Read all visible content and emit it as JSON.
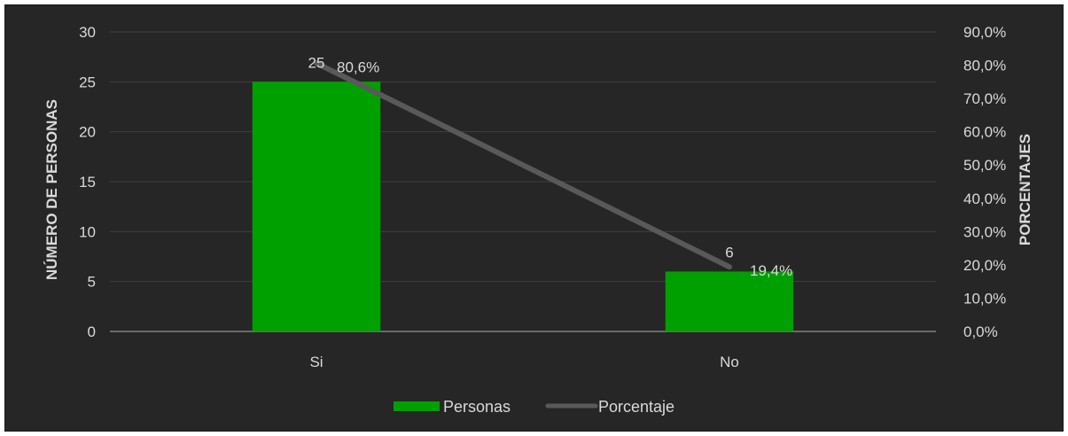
{
  "chart_data": {
    "type": "bar",
    "categories": [
      "Si",
      "No"
    ],
    "series": [
      {
        "name": "Personas",
        "type": "bar",
        "axis": "left",
        "values": [
          25,
          6
        ],
        "color": "#00a000",
        "labels": [
          "25",
          "6"
        ]
      },
      {
        "name": "Porcentaje",
        "type": "line",
        "axis": "right",
        "values": [
          80.6,
          19.4
        ],
        "color": "#595959",
        "labels": [
          "80,6%",
          "19,4%"
        ]
      }
    ],
    "ylabel": "NÚMERO DE PERSONAS",
    "y2label": "PORCENTAJES",
    "ylim": [
      0,
      30
    ],
    "y2lim": [
      0,
      90
    ],
    "yticks": [
      "0",
      "5",
      "10",
      "15",
      "20",
      "25",
      "30"
    ],
    "y2ticks": [
      "0,0%",
      "10,0%",
      "20,0%",
      "30,0%",
      "40,0%",
      "50,0%",
      "60,0%",
      "70,0%",
      "80,0%",
      "90,0%"
    ],
    "grid": true,
    "legend": "bottom",
    "colors": {
      "background": "#262626",
      "text": "#d9d9d9",
      "grid": "#404040",
      "axis": "#808080"
    }
  }
}
